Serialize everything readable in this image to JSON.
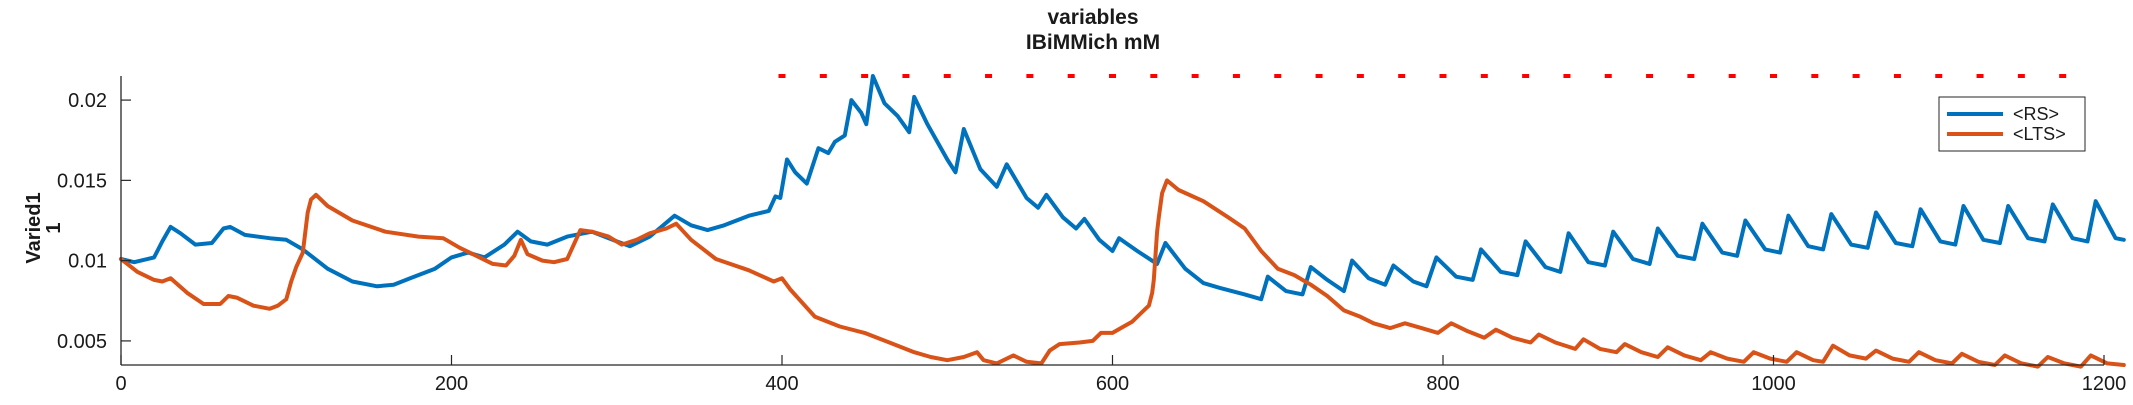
{
  "chart_data": {
    "type": "line",
    "title": [
      "variables",
      "IBiMMich mM"
    ],
    "xlabel": "",
    "ylabel": [
      "Varied1",
      "1"
    ],
    "xlim": [
      0,
      1200
    ],
    "ylim": [
      0.0035,
      0.0215
    ],
    "x_ticks": [
      0,
      200,
      400,
      600,
      800,
      1000,
      1200
    ],
    "x_tick_labels": [
      "0",
      "200",
      "400",
      "600",
      "800",
      "1000",
      "1200"
    ],
    "y_ticks": [
      0.005,
      0.01,
      0.015,
      0.02
    ],
    "y_tick_labels": [
      "0.005",
      "0.01",
      "0.015",
      "0.02"
    ],
    "grid": false,
    "legend_position": "top-right",
    "markers": {
      "style": "red-dashes",
      "color": "#ff0000",
      "y": 0.0215,
      "x_start": 400,
      "x_end": 1185,
      "spacing": 25
    },
    "series": [
      {
        "name": "<RS>",
        "color": "#0072bd",
        "points": [
          [
            0,
            0.0101
          ],
          [
            8,
            0.0099
          ],
          [
            20,
            0.0102
          ],
          [
            25,
            0.0112
          ],
          [
            30,
            0.0121
          ],
          [
            36,
            0.0117
          ],
          [
            45,
            0.011
          ],
          [
            55,
            0.0111
          ],
          [
            62,
            0.012
          ],
          [
            66,
            0.0121
          ],
          [
            75,
            0.0116
          ],
          [
            90,
            0.0114
          ],
          [
            100,
            0.0113
          ],
          [
            110,
            0.0107
          ],
          [
            125,
            0.0095
          ],
          [
            140,
            0.0087
          ],
          [
            155,
            0.0084
          ],
          [
            165,
            0.0085
          ],
          [
            175,
            0.0089
          ],
          [
            190,
            0.0095
          ],
          [
            200,
            0.0102
          ],
          [
            210,
            0.0105
          ],
          [
            220,
            0.0102
          ],
          [
            232,
            0.011
          ],
          [
            240,
            0.0118
          ],
          [
            248,
            0.0112
          ],
          [
            258,
            0.011
          ],
          [
            270,
            0.0115
          ],
          [
            285,
            0.0118
          ],
          [
            300,
            0.0112
          ],
          [
            308,
            0.0109
          ],
          [
            320,
            0.0115
          ],
          [
            335,
            0.0128
          ],
          [
            345,
            0.0122
          ],
          [
            355,
            0.0119
          ],
          [
            365,
            0.0122
          ],
          [
            380,
            0.0128
          ],
          [
            392,
            0.0131
          ],
          [
            396,
            0.014
          ],
          [
            399,
            0.0139
          ],
          [
            403,
            0.0163
          ],
          [
            408,
            0.0155
          ],
          [
            415,
            0.0148
          ],
          [
            422,
            0.017
          ],
          [
            428,
            0.0167
          ],
          [
            432,
            0.0174
          ],
          [
            438,
            0.0178
          ],
          [
            442,
            0.02
          ],
          [
            448,
            0.0192
          ],
          [
            451,
            0.0185
          ],
          [
            455,
            0.0215
          ],
          [
            462,
            0.0198
          ],
          [
            470,
            0.019
          ],
          [
            477,
            0.018
          ],
          [
            480,
            0.0202
          ],
          [
            488,
            0.0185
          ],
          [
            500,
            0.0163
          ],
          [
            505,
            0.0155
          ],
          [
            510,
            0.0182
          ],
          [
            520,
            0.0157
          ],
          [
            530,
            0.0146
          ],
          [
            536,
            0.016
          ],
          [
            548,
            0.0139
          ],
          [
            555,
            0.0133
          ],
          [
            560,
            0.0141
          ],
          [
            570,
            0.0127
          ],
          [
            578,
            0.012
          ],
          [
            583,
            0.0126
          ],
          [
            592,
            0.0113
          ],
          [
            600,
            0.0106
          ],
          [
            604,
            0.0114
          ],
          [
            615,
            0.0106
          ],
          [
            627,
            0.0098
          ],
          [
            632,
            0.0111
          ],
          [
            644,
            0.0095
          ],
          [
            655,
            0.0086
          ],
          [
            665,
            0.0083
          ],
          [
            680,
            0.0079
          ],
          [
            690,
            0.0076
          ],
          [
            694,
            0.009
          ],
          [
            705,
            0.0081
          ],
          [
            715,
            0.0079
          ],
          [
            720,
            0.0096
          ],
          [
            730,
            0.0088
          ],
          [
            740,
            0.0081
          ],
          [
            745,
            0.01
          ],
          [
            755,
            0.0089
          ],
          [
            765,
            0.0085
          ],
          [
            770,
            0.0097
          ],
          [
            782,
            0.0087
          ],
          [
            790,
            0.0084
          ],
          [
            796,
            0.0102
          ],
          [
            808,
            0.009
          ],
          [
            818,
            0.0088
          ],
          [
            823,
            0.0107
          ],
          [
            835,
            0.0093
          ],
          [
            845,
            0.0091
          ],
          [
            850,
            0.0112
          ],
          [
            862,
            0.0096
          ],
          [
            871,
            0.0093
          ],
          [
            876,
            0.0117
          ],
          [
            888,
            0.0099
          ],
          [
            898,
            0.0097
          ],
          [
            903,
            0.0118
          ],
          [
            915,
            0.0101
          ],
          [
            925,
            0.0098
          ],
          [
            930,
            0.012
          ],
          [
            942,
            0.0103
          ],
          [
            952,
            0.0101
          ],
          [
            957,
            0.0123
          ],
          [
            969,
            0.0105
          ],
          [
            978,
            0.0103
          ],
          [
            983,
            0.0125
          ],
          [
            995,
            0.0107
          ],
          [
            1004,
            0.0105
          ],
          [
            1009,
            0.0128
          ],
          [
            1021,
            0.0109
          ],
          [
            1030,
            0.0107
          ],
          [
            1035,
            0.0129
          ],
          [
            1047,
            0.011
          ],
          [
            1057,
            0.0108
          ],
          [
            1062,
            0.013
          ],
          [
            1074,
            0.0111
          ],
          [
            1084,
            0.0109
          ],
          [
            1089,
            0.0132
          ],
          [
            1101,
            0.0112
          ],
          [
            1110,
            0.011
          ],
          [
            1115,
            0.0134
          ],
          [
            1127,
            0.0113
          ],
          [
            1137,
            0.0111
          ],
          [
            1142,
            0.0134
          ],
          [
            1154,
            0.0114
          ],
          [
            1164,
            0.0112
          ],
          [
            1169,
            0.0135
          ],
          [
            1181,
            0.0114
          ],
          [
            1190,
            0.0112
          ],
          [
            1195,
            0.0137
          ],
          [
            1207,
            0.0114
          ],
          [
            1212,
            0.0113
          ]
        ]
      },
      {
        "name": "<LTS>",
        "color": "#d95319",
        "points": [
          [
            0,
            0.0101
          ],
          [
            10,
            0.0093
          ],
          [
            20,
            0.0088
          ],
          [
            25,
            0.0087
          ],
          [
            30,
            0.0089
          ],
          [
            40,
            0.008
          ],
          [
            50,
            0.0073
          ],
          [
            60,
            0.0073
          ],
          [
            65,
            0.0078
          ],
          [
            70,
            0.0077
          ],
          [
            80,
            0.0072
          ],
          [
            90,
            0.007
          ],
          [
            95,
            0.0072
          ],
          [
            100,
            0.0076
          ],
          [
            103,
            0.0087
          ],
          [
            106,
            0.0096
          ],
          [
            110,
            0.0105
          ],
          [
            113,
            0.013
          ],
          [
            115,
            0.0138
          ],
          [
            118,
            0.0141
          ],
          [
            125,
            0.0134
          ],
          [
            140,
            0.0125
          ],
          [
            160,
            0.0118
          ],
          [
            180,
            0.0115
          ],
          [
            195,
            0.0114
          ],
          [
            205,
            0.0108
          ],
          [
            215,
            0.0103
          ],
          [
            225,
            0.0098
          ],
          [
            233,
            0.0097
          ],
          [
            238,
            0.0103
          ],
          [
            242,
            0.0113
          ],
          [
            246,
            0.0104
          ],
          [
            255,
            0.01
          ],
          [
            262,
            0.0099
          ],
          [
            270,
            0.0101
          ],
          [
            274,
            0.011
          ],
          [
            278,
            0.0119
          ],
          [
            285,
            0.0118
          ],
          [
            295,
            0.0115
          ],
          [
            303,
            0.011
          ],
          [
            312,
            0.0113
          ],
          [
            320,
            0.0117
          ],
          [
            330,
            0.012
          ],
          [
            336,
            0.0123
          ],
          [
            345,
            0.0113
          ],
          [
            360,
            0.0101
          ],
          [
            380,
            0.0094
          ],
          [
            395,
            0.0087
          ],
          [
            400,
            0.0089
          ],
          [
            405,
            0.0082
          ],
          [
            420,
            0.0065
          ],
          [
            435,
            0.0059
          ],
          [
            450,
            0.0055
          ],
          [
            465,
            0.0049
          ],
          [
            480,
            0.0043
          ],
          [
            490,
            0.004
          ],
          [
            500,
            0.0038
          ],
          [
            510,
            0.004
          ],
          [
            518,
            0.0043
          ],
          [
            522,
            0.0038
          ],
          [
            530,
            0.0036
          ],
          [
            540,
            0.0041
          ],
          [
            548,
            0.0037
          ],
          [
            557,
            0.0036
          ],
          [
            562,
            0.0044
          ],
          [
            568,
            0.0048
          ],
          [
            580,
            0.0049
          ],
          [
            588,
            0.005
          ],
          [
            593,
            0.0055
          ],
          [
            600,
            0.0055
          ],
          [
            605,
            0.0058
          ],
          [
            612,
            0.0062
          ],
          [
            618,
            0.0068
          ],
          [
            622,
            0.0072
          ],
          [
            624,
            0.008
          ],
          [
            625,
            0.0088
          ],
          [
            627,
            0.0118
          ],
          [
            628,
            0.0127
          ],
          [
            630,
            0.0142
          ],
          [
            633,
            0.015
          ],
          [
            640,
            0.0144
          ],
          [
            655,
            0.0137
          ],
          [
            670,
            0.0127
          ],
          [
            680,
            0.012
          ],
          [
            690,
            0.0106
          ],
          [
            700,
            0.0095
          ],
          [
            710,
            0.0091
          ],
          [
            720,
            0.0085
          ],
          [
            730,
            0.0078
          ],
          [
            740,
            0.0069
          ],
          [
            750,
            0.0065
          ],
          [
            758,
            0.0061
          ],
          [
            768,
            0.0058
          ],
          [
            777,
            0.0061
          ],
          [
            787,
            0.0058
          ],
          [
            797,
            0.0055
          ],
          [
            805,
            0.0061
          ],
          [
            815,
            0.0056
          ],
          [
            825,
            0.0052
          ],
          [
            832,
            0.0057
          ],
          [
            842,
            0.0052
          ],
          [
            853,
            0.0049
          ],
          [
            858,
            0.0054
          ],
          [
            868,
            0.0049
          ],
          [
            880,
            0.0045
          ],
          [
            885,
            0.0051
          ],
          [
            895,
            0.0045
          ],
          [
            905,
            0.0043
          ],
          [
            910,
            0.0048
          ],
          [
            920,
            0.0043
          ],
          [
            930,
            0.004
          ],
          [
            936,
            0.0046
          ],
          [
            946,
            0.0041
          ],
          [
            956,
            0.0038
          ],
          [
            962,
            0.0043
          ],
          [
            972,
            0.0039
          ],
          [
            982,
            0.0037
          ],
          [
            988,
            0.0043
          ],
          [
            998,
            0.0039
          ],
          [
            1008,
            0.0037
          ],
          [
            1014,
            0.0043
          ],
          [
            1024,
            0.0038
          ],
          [
            1030,
            0.0037
          ],
          [
            1036,
            0.0047
          ],
          [
            1046,
            0.0041
          ],
          [
            1056,
            0.0039
          ],
          [
            1062,
            0.0044
          ],
          [
            1072,
            0.0039
          ],
          [
            1082,
            0.0037
          ],
          [
            1088,
            0.0043
          ],
          [
            1098,
            0.0038
          ],
          [
            1108,
            0.0036
          ],
          [
            1114,
            0.0042
          ],
          [
            1124,
            0.0037
          ],
          [
            1134,
            0.0035
          ],
          [
            1140,
            0.0041
          ],
          [
            1150,
            0.0036
          ],
          [
            1160,
            0.0034
          ],
          [
            1166,
            0.004
          ],
          [
            1176,
            0.0036
          ],
          [
            1186,
            0.0034
          ],
          [
            1192,
            0.0041
          ],
          [
            1202,
            0.0036
          ],
          [
            1212,
            0.0035
          ]
        ]
      }
    ]
  }
}
